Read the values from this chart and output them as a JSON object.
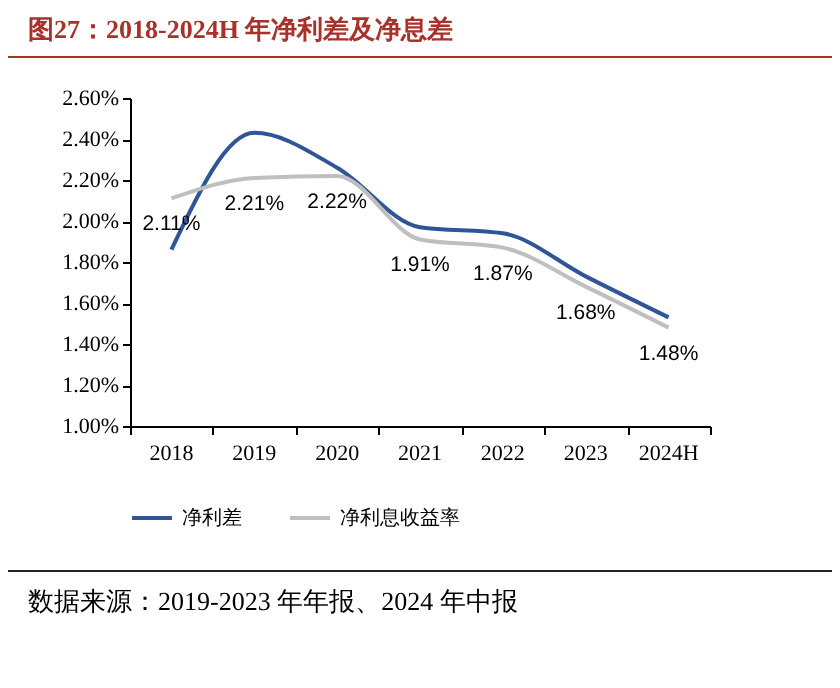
{
  "chart_data": {
    "type": "line",
    "title": "图27：2018-2024H 年净利差及净息差",
    "categories": [
      "2018",
      "2019",
      "2020",
      "2021",
      "2022",
      "2023",
      "2024H"
    ],
    "series": [
      {
        "name": "净利差",
        "color": "#2f5597",
        "values": [
          1.86,
          2.43,
          2.26,
          1.97,
          1.94,
          1.73,
          1.53
        ]
      },
      {
        "name": "净利息收益率",
        "color": "#bfbfbf",
        "values": [
          2.11,
          2.21,
          2.22,
          1.91,
          1.87,
          1.68,
          1.48
        ],
        "value_labels": [
          "2.11%",
          "2.21%",
          "2.22%",
          "1.91%",
          "1.87%",
          "1.68%",
          "1.48%"
        ]
      }
    ],
    "ylim": [
      1.0,
      2.6
    ],
    "yticks": [
      {
        "value": 1.0,
        "label": "1.00%"
      },
      {
        "value": 1.2,
        "label": "1.20%"
      },
      {
        "value": 1.4,
        "label": "1.40%"
      },
      {
        "value": 1.6,
        "label": "1.60%"
      },
      {
        "value": 1.8,
        "label": "1.80%"
      },
      {
        "value": 2.0,
        "label": "2.00%"
      },
      {
        "value": 2.2,
        "label": "2.20%"
      },
      {
        "value": 2.4,
        "label": "2.40%"
      },
      {
        "value": 2.6,
        "label": "2.60%"
      }
    ],
    "grid": false,
    "legend": "bottom",
    "marker": "none",
    "line_style": "solid",
    "annotations": [
      "数据来源：2019-2023 年年报、2024 年中报"
    ]
  }
}
